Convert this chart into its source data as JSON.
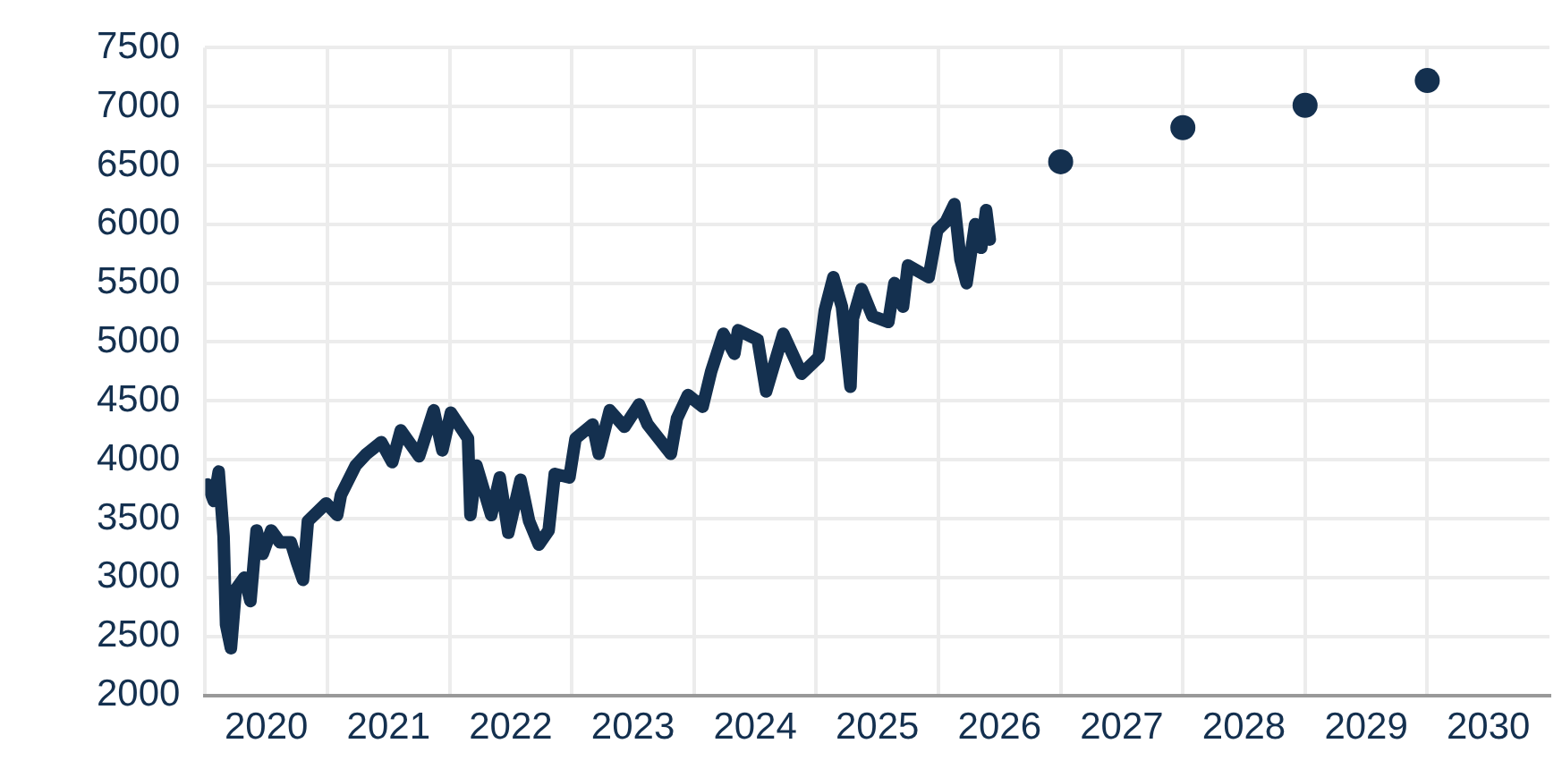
{
  "chart_data": {
    "type": "line",
    "xlim": [
      2020,
      2031
    ],
    "xticks": [
      {
        "value": 2020,
        "label": null
      },
      {
        "value": 2020.5,
        "label": "2020"
      },
      {
        "value": 2021,
        "label": null
      },
      {
        "value": 2021.5,
        "label": "2021"
      },
      {
        "value": 2022,
        "label": null
      },
      {
        "value": 2022.5,
        "label": "2022"
      },
      {
        "value": 2023,
        "label": null
      },
      {
        "value": 2023.5,
        "label": "2023"
      },
      {
        "value": 2024,
        "label": null
      },
      {
        "value": 2024.5,
        "label": "2024"
      },
      {
        "value": 2025,
        "label": null
      },
      {
        "value": 2025.5,
        "label": "2025"
      },
      {
        "value": 2026,
        "label": null
      },
      {
        "value": 2026.5,
        "label": "2026"
      },
      {
        "value": 2027,
        "label": null
      },
      {
        "value": 2027.5,
        "label": "2027"
      },
      {
        "value": 2028,
        "label": null
      },
      {
        "value": 2028.5,
        "label": "2028"
      },
      {
        "value": 2029,
        "label": null
      },
      {
        "value": 2029.5,
        "label": "2029"
      },
      {
        "value": 2030,
        "label": null
      },
      {
        "value": 2030.5,
        "label": "2030"
      }
    ],
    "ylim": [
      2000,
      7500
    ],
    "yticks": [
      2000,
      2500,
      3000,
      3500,
      4000,
      4500,
      5000,
      5500,
      6000,
      6500,
      7000,
      7500
    ],
    "grid": true,
    "legend": false,
    "series": [
      {
        "type": "line",
        "color": "#14304f",
        "marker": "none",
        "line_style": "solid",
        "x": [
          2020.02,
          2020.07,
          2020.11,
          2020.15,
          2020.17,
          2020.21,
          2020.25,
          2020.32,
          2020.37,
          2020.42,
          2020.47,
          2020.54,
          2020.61,
          2020.7,
          2020.75,
          2020.8,
          2020.84,
          2020.99,
          2021.08,
          2021.11,
          2021.23,
          2021.32,
          2021.44,
          2021.53,
          2021.6,
          2021.75,
          2021.87,
          2021.94,
          2022.01,
          2022.15,
          2022.17,
          2022.22,
          2022.34,
          2022.41,
          2022.48,
          2022.58,
          2022.65,
          2022.73,
          2022.81,
          2022.86,
          2022.98,
          2023.03,
          2023.17,
          2023.22,
          2023.31,
          2023.43,
          2023.55,
          2023.62,
          2023.81,
          2023.86,
          2023.95,
          2024.07,
          2024.14,
          2024.24,
          2024.33,
          2024.36,
          2024.52,
          2024.59,
          2024.73,
          2024.88,
          2025.02,
          2025.07,
          2025.14,
          2025.21,
          2025.28,
          2025.3,
          2025.37,
          2025.46,
          2025.59,
          2025.64,
          2025.71,
          2025.75,
          2025.92,
          2025.99,
          2026.06,
          2026.13,
          2026.18,
          2026.23,
          2026.3,
          2026.35,
          2026.39,
          2026.42
        ],
        "values": [
          3790,
          3650,
          3900,
          3350,
          2600,
          2400,
          2900,
          3000,
          2800,
          3400,
          3200,
          3400,
          3300,
          3300,
          3130,
          2980,
          3480,
          3630,
          3530,
          3700,
          3950,
          4050,
          4150,
          3980,
          4250,
          4030,
          4420,
          4080,
          4400,
          4180,
          3530,
          3950,
          3530,
          3850,
          3380,
          3830,
          3480,
          3280,
          3400,
          3880,
          3850,
          4180,
          4300,
          4050,
          4420,
          4280,
          4470,
          4300,
          4050,
          4350,
          4550,
          4450,
          4750,
          5070,
          4900,
          5100,
          5020,
          4580,
          5070,
          4730,
          4870,
          5270,
          5550,
          5300,
          4620,
          5200,
          5450,
          5220,
          5170,
          5500,
          5300,
          5650,
          5550,
          5950,
          6020,
          6170,
          5700,
          5500,
          6000,
          5800,
          6120,
          5870
        ]
      },
      {
        "type": "scatter",
        "color": "#14304f",
        "marker": "circle",
        "x": [
          2027,
          2028,
          2029,
          2030
        ],
        "values": [
          6530,
          6820,
          7010,
          7220
        ]
      }
    ]
  }
}
